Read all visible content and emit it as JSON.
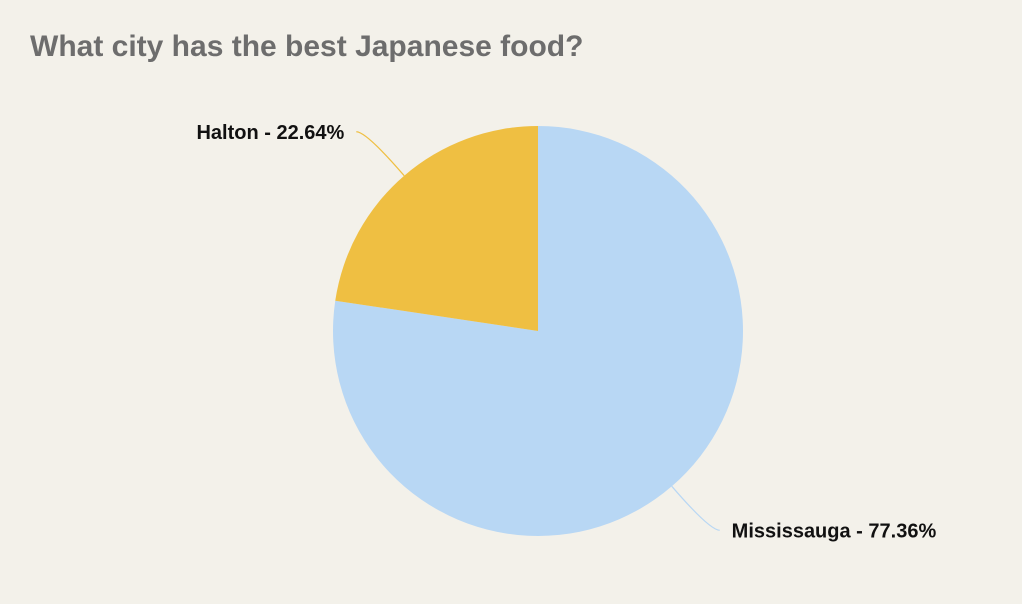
{
  "chart_data": {
    "type": "pie",
    "title": "What city has the best Japanese food?",
    "values": [
      77.36,
      22.64
    ],
    "value_labels": [
      "Mississauga - 77.36%",
      "Halton - 22.64%"
    ],
    "colors": [
      "#b8d7f4",
      "#efbf42"
    ]
  }
}
